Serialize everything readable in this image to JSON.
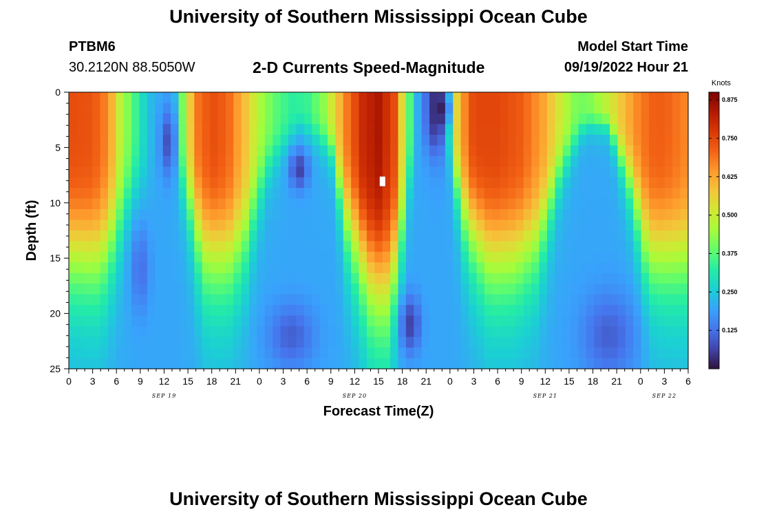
{
  "page": {
    "title_top": "University of Southern Mississippi Ocean Cube",
    "title_bottom": "University of Southern Mississippi Ocean Cube",
    "station": "PTBM6",
    "coords": "30.2120N  88.5050W",
    "model_start_label": "Model Start Time",
    "model_start_value": "09/19/2022 Hour 21"
  },
  "chart_data": {
    "type": "heatmap",
    "title": "2-D Currents Speed-Magnitude",
    "xlabel": "Forecast Time(Z)",
    "ylabel": "Depth (ft)",
    "x_range_hours": [
      0,
      78
    ],
    "y_range_ft": [
      0,
      25
    ],
    "x_ticks": [
      {
        "h": 0,
        "label": "0"
      },
      {
        "h": 3,
        "label": "3"
      },
      {
        "h": 6,
        "label": "6"
      },
      {
        "h": 9,
        "label": "9"
      },
      {
        "h": 12,
        "label": "12"
      },
      {
        "h": 15,
        "label": "15"
      },
      {
        "h": 18,
        "label": "18"
      },
      {
        "h": 21,
        "label": "21"
      },
      {
        "h": 24,
        "label": "0"
      },
      {
        "h": 27,
        "label": "3"
      },
      {
        "h": 30,
        "label": "6"
      },
      {
        "h": 33,
        "label": "9"
      },
      {
        "h": 36,
        "label": "12"
      },
      {
        "h": 39,
        "label": "15"
      },
      {
        "h": 42,
        "label": "18"
      },
      {
        "h": 45,
        "label": "21"
      },
      {
        "h": 48,
        "label": "0"
      },
      {
        "h": 51,
        "label": "3"
      },
      {
        "h": 54,
        "label": "6"
      },
      {
        "h": 57,
        "label": "9"
      },
      {
        "h": 60,
        "label": "12"
      },
      {
        "h": 63,
        "label": "15"
      },
      {
        "h": 66,
        "label": "18"
      },
      {
        "h": 69,
        "label": "21"
      },
      {
        "h": 72,
        "label": "0"
      },
      {
        "h": 75,
        "label": "3"
      },
      {
        "h": 78,
        "label": "6"
      }
    ],
    "y_ticks": [
      {
        "v": 0,
        "label": "0"
      },
      {
        "v": 5,
        "label": "5"
      },
      {
        "v": 10,
        "label": "10"
      },
      {
        "v": 15,
        "label": "15"
      },
      {
        "v": 20,
        "label": "20"
      },
      {
        "v": 25,
        "label": "25"
      }
    ],
    "date_labels": [
      {
        "h": 12,
        "label": "SEP 19"
      },
      {
        "h": 36,
        "label": "SEP 20"
      },
      {
        "h": 60,
        "label": "SEP 21"
      },
      {
        "h": 75,
        "label": "SEP 22"
      }
    ],
    "colorbar": {
      "unit": "Knots",
      "min": 0.0,
      "max": 0.9,
      "ticks": [
        {
          "v": 0.125,
          "label": "0.125"
        },
        {
          "v": 0.25,
          "label": "0.250"
        },
        {
          "v": 0.375,
          "label": "0.375"
        },
        {
          "v": 0.5,
          "label": "0.500"
        },
        {
          "v": 0.625,
          "label": "0.625"
        },
        {
          "v": 0.75,
          "label": "0.750"
        },
        {
          "v": 0.875,
          "label": "0.875"
        }
      ],
      "colors": [
        "#30123b",
        "#4145ab",
        "#4675ed",
        "#39a2fc",
        "#1bcfd4",
        "#24eca6",
        "#61fc6c",
        "#a4fc3b",
        "#d1e834",
        "#f3c63a",
        "#fe9b2d",
        "#f36315",
        "#d93806",
        "#b11901",
        "#7a0403"
      ]
    },
    "surface_profile_knots": [
      {
        "h": 0,
        "v": 0.74
      },
      {
        "h": 3,
        "v": 0.73
      },
      {
        "h": 5,
        "v": 0.66
      },
      {
        "h": 6.5,
        "v": 0.48
      },
      {
        "h": 8,
        "v": 0.38
      },
      {
        "h": 9,
        "v": 0.3
      },
      {
        "h": 10.5,
        "v": 0.22
      },
      {
        "h": 12,
        "v": 0.2
      },
      {
        "h": 13.5,
        "v": 0.24
      },
      {
        "h": 14.5,
        "v": 0.45
      },
      {
        "h": 16,
        "v": 0.68
      },
      {
        "h": 18,
        "v": 0.74
      },
      {
        "h": 20,
        "v": 0.71
      },
      {
        "h": 22,
        "v": 0.6
      },
      {
        "h": 24,
        "v": 0.46
      },
      {
        "h": 26,
        "v": 0.38
      },
      {
        "h": 28,
        "v": 0.33
      },
      {
        "h": 30,
        "v": 0.34
      },
      {
        "h": 32,
        "v": 0.42
      },
      {
        "h": 33.5,
        "v": 0.55
      },
      {
        "h": 35,
        "v": 0.68
      },
      {
        "h": 37,
        "v": 0.8
      },
      {
        "h": 39,
        "v": 0.84
      },
      {
        "h": 41,
        "v": 0.74
      },
      {
        "h": 42.5,
        "v": 0.44
      },
      {
        "h": 44,
        "v": 0.2
      },
      {
        "h": 46,
        "v": 0.04
      },
      {
        "h": 47,
        "v": 0.1
      },
      {
        "h": 48,
        "v": 0.32
      },
      {
        "h": 49,
        "v": 0.6
      },
      {
        "h": 51,
        "v": 0.75
      },
      {
        "h": 54,
        "v": 0.75
      },
      {
        "h": 57,
        "v": 0.72
      },
      {
        "h": 60,
        "v": 0.62
      },
      {
        "h": 62,
        "v": 0.5
      },
      {
        "h": 64,
        "v": 0.4
      },
      {
        "h": 66,
        "v": 0.42
      },
      {
        "h": 68,
        "v": 0.5
      },
      {
        "h": 70,
        "v": 0.6
      },
      {
        "h": 72,
        "v": 0.68
      },
      {
        "h": 74,
        "v": 0.72
      },
      {
        "h": 76,
        "v": 0.7
      },
      {
        "h": 78,
        "v": 0.66
      }
    ],
    "extent_profile_ft": [
      {
        "h": 0,
        "d": 15.0
      },
      {
        "h": 4,
        "d": 15.5
      },
      {
        "h": 6,
        "d": 13.0
      },
      {
        "h": 8,
        "d": 9.0
      },
      {
        "h": 11,
        "d": 8.0
      },
      {
        "h": 14,
        "d": 8.0
      },
      {
        "h": 15.5,
        "d": 11.0
      },
      {
        "h": 17,
        "d": 15.0
      },
      {
        "h": 20,
        "d": 15.5
      },
      {
        "h": 22,
        "d": 14.0
      },
      {
        "h": 25,
        "d": 7.0
      },
      {
        "h": 29,
        "d": 3.0
      },
      {
        "h": 33,
        "d": 5.0
      },
      {
        "h": 35,
        "d": 12.0
      },
      {
        "h": 38,
        "d": 17.5
      },
      {
        "h": 40,
        "d": 18.5
      },
      {
        "h": 41.5,
        "d": 15.0
      },
      {
        "h": 43,
        "d": 8.0
      },
      {
        "h": 45,
        "d": 5.0
      },
      {
        "h": 48,
        "d": 6.0
      },
      {
        "h": 50,
        "d": 12.0
      },
      {
        "h": 53,
        "d": 15.5
      },
      {
        "h": 56,
        "d": 15.5
      },
      {
        "h": 59,
        "d": 14.0
      },
      {
        "h": 62,
        "d": 7.0
      },
      {
        "h": 65,
        "d": 3.0
      },
      {
        "h": 68,
        "d": 3.0
      },
      {
        "h": 71,
        "d": 9.0
      },
      {
        "h": 73,
        "d": 15.0
      },
      {
        "h": 78,
        "d": 15.5
      }
    ],
    "deep_speed_knots": 0.2,
    "lows": [
      {
        "h": 12.5,
        "d": 4.5,
        "v": 0.08,
        "sh": 1.0,
        "sd": 3.2
      },
      {
        "h": 9,
        "d": 16,
        "v": 0.12,
        "sh": 1.2,
        "sd": 4.0
      },
      {
        "h": 29,
        "d": 7,
        "v": 0.06,
        "sh": 1.2,
        "sd": 1.8
      },
      {
        "h": 28,
        "d": 22,
        "v": 0.1,
        "sh": 3.0,
        "sd": 3.0
      },
      {
        "h": 43,
        "d": 21,
        "v": 0.06,
        "sh": 1.3,
        "sd": 2.6
      },
      {
        "h": 47,
        "d": 1.5,
        "v": 0.02,
        "sh": 1.0,
        "sd": 1.6
      },
      {
        "h": 68,
        "d": 22,
        "v": 0.1,
        "sh": 3.5,
        "sd": 4.0
      }
    ],
    "marker": {
      "h": 39.5,
      "d": 8
    }
  }
}
